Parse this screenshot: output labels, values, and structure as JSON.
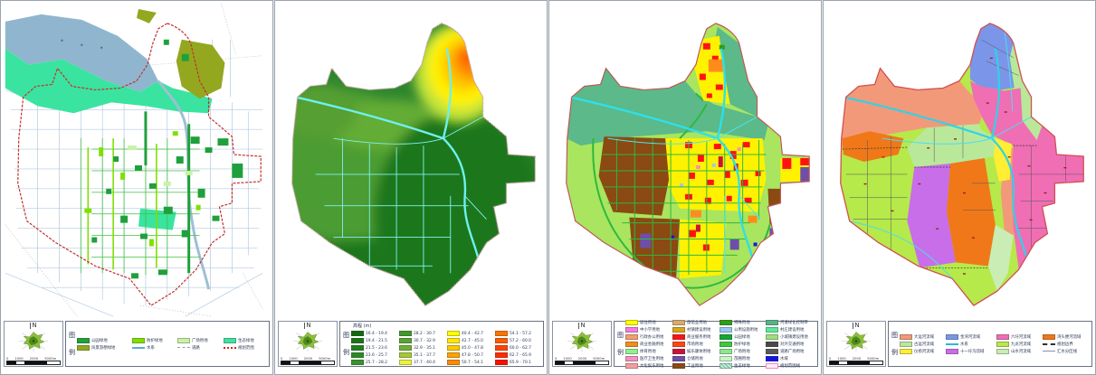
{
  "shared": {
    "north_label": "N",
    "scale_labels": [
      "0",
      "1000",
      "2000",
      "5000m"
    ],
    "legend_chars": [
      "图",
      "例"
    ]
  },
  "panels": [
    {
      "id": "green-space-plan",
      "palette": {
        "lake": "#8fb6ce",
        "eco_band": "#3be3a0",
        "river": "#9fbfd4",
        "boundary": "#c23030"
      },
      "legend": {
        "items": [
          {
            "label": "公园绿地",
            "color": "#1fa03c",
            "type": "fill"
          },
          {
            "label": "风景游憩绿地",
            "color": "#93a81f",
            "type": "fill"
          },
          {
            "label": "防护绿地",
            "color": "#7fe000",
            "type": "fill"
          },
          {
            "label": "水系",
            "color": "#5fa8d8",
            "type": "water-line"
          },
          {
            "label": "广场用地",
            "color": "#c9f2a6",
            "type": "fill"
          },
          {
            "label": "道路",
            "color": "#9a9a9a",
            "type": "road-line"
          },
          {
            "label": "生态绿地",
            "color": "#3be3a0",
            "type": "fill"
          },
          {
            "label": "规划范围",
            "color": "#d42020",
            "type": "dash-red"
          }
        ]
      }
    },
    {
      "id": "elevation-map",
      "legend_title": "高程 (m)",
      "palette": {
        "base": "#2e862e",
        "water": "#6ff0f0",
        "boundary": "#c49a9a"
      },
      "legend": {
        "items": [
          {
            "range": "16.4 - 19.4",
            "color": "#0e6b0e",
            "type": "fill"
          },
          {
            "range": "19.4 - 21.5",
            "color": "#177517",
            "type": "fill"
          },
          {
            "range": "21.5 - 23.6",
            "color": "#1f7f1f",
            "type": "fill"
          },
          {
            "range": "23.6 - 25.7",
            "color": "#2a8a24",
            "type": "fill"
          },
          {
            "range": "25.7 - 28.2",
            "color": "#37942a",
            "type": "fill"
          },
          {
            "range": "28.2 - 30.7",
            "color": "#3f9a2b",
            "type": "fill"
          },
          {
            "range": "30.7 - 32.9",
            "color": "#55a52f",
            "type": "fill"
          },
          {
            "range": "32.9 - 35.1",
            "color": "#6fb033",
            "type": "fill"
          },
          {
            "range": "35.1 - 37.7",
            "color": "#a5c838",
            "type": "fill"
          },
          {
            "range": "37.7 - 40.4",
            "color": "#eef23c",
            "type": "fill"
          },
          {
            "range": "40.4 - 42.7",
            "color": "#ffff00",
            "type": "fill"
          },
          {
            "range": "42.7 - 45.0",
            "color": "#ffe800",
            "type": "fill"
          },
          {
            "range": "45.0 - 47.8",
            "color": "#ffc800",
            "type": "fill"
          },
          {
            "range": "47.8 - 50.7",
            "color": "#ffa300",
            "type": "fill"
          },
          {
            "range": "50.7 - 54.1",
            "color": "#ff8a00",
            "type": "fill"
          },
          {
            "range": "54.1 - 57.2",
            "color": "#ff7300",
            "type": "fill"
          },
          {
            "range": "57.2 - 60.0",
            "color": "#ff5c00",
            "type": "fill"
          },
          {
            "range": "60.0 - 62.7",
            "color": "#ff4300",
            "type": "fill"
          },
          {
            "range": "62.7 - 65.9",
            "color": "#ff2a00",
            "type": "fill"
          },
          {
            "range": "65.9 - 70.1",
            "color": "#ff0f00",
            "type": "fill"
          }
        ]
      }
    },
    {
      "id": "land-use-plan",
      "palette": {
        "base": "#a9e55f",
        "river_band": "#5bb98a",
        "water": "#2fe0e8",
        "roads": "#2fb83f"
      },
      "legend": {
        "items": [
          {
            "label": "居住用地",
            "color": "#ffff00",
            "type": "fill"
          },
          {
            "label": "中小学用地",
            "color": "#f27ce0",
            "type": "fill"
          },
          {
            "label": "行政办公用地",
            "color": "#f29e6e",
            "type": "fill"
          },
          {
            "label": "商业金融用地",
            "color": "#f28c1a",
            "type": "fill"
          },
          {
            "label": "体育用地",
            "color": "#90f090",
            "type": "fill"
          },
          {
            "label": "医疗卫生用地",
            "color": "#f590c0",
            "type": "fill"
          },
          {
            "label": "文化娱乐用地",
            "color": "#f59e9e",
            "type": "fill"
          },
          {
            "label": "旅馆业用地",
            "color": "#d9a96e",
            "type": "fill"
          },
          {
            "label": "村镇建设用地",
            "color": "#d8a516",
            "type": "fill"
          },
          {
            "label": "商业服务用地",
            "color": "#ff1212",
            "type": "fill"
          },
          {
            "label": "市场用地",
            "color": "#ff4612",
            "type": "fill"
          },
          {
            "label": "娱乐康体用地",
            "color": "#cc1239",
            "type": "fill"
          },
          {
            "label": "仓储用地",
            "color": "#6e4fa8",
            "type": "fill"
          },
          {
            "label": "工业用地",
            "color": "#8a4a12",
            "type": "fill"
          },
          {
            "label": "特殊用地",
            "color": "#2f9e12",
            "type": "fill"
          },
          {
            "label": "公用设施用地",
            "color": "#9cc8f5",
            "type": "fill"
          },
          {
            "label": "公园绿地",
            "color": "#12a832",
            "type": "fill"
          },
          {
            "label": "防护绿地",
            "color": "#3cc83c",
            "type": "fill"
          },
          {
            "label": "广场用地",
            "color": "#8ce88c",
            "type": "fill"
          },
          {
            "label": "苗圃用地",
            "color": "#c8f5c8",
            "type": "fill"
          },
          {
            "label": "生态绿地",
            "color": "#7acca8",
            "type": "hatch"
          },
          {
            "label": "河道绿化控制带",
            "color": "#56b389",
            "type": "fill"
          },
          {
            "label": "村庄建设用地",
            "color": "#5ce89c",
            "type": "fill"
          },
          {
            "label": "小城镇建设用地",
            "color": "#9ce07c",
            "type": "fill"
          },
          {
            "label": "对外交通用地",
            "color": "#4a4a4a",
            "type": "fill"
          },
          {
            "label": "道路广场用地",
            "color": "#5a5a5a",
            "type": "fill"
          },
          {
            "label": "水域",
            "color": "#1414e8",
            "type": "fill"
          },
          {
            "label": "规划范围线",
            "color": "#f08ac0",
            "type": "outline-pink"
          }
        ]
      }
    },
    {
      "id": "drainage-basins",
      "palette": {
        "base": "#b6e94a",
        "water": "#2fd2e8",
        "boundary": "#d05050"
      },
      "legend": {
        "items": [
          {
            "label": "大运河流域",
            "color": "#f2997a",
            "type": "fill"
          },
          {
            "label": "古运河流域",
            "color": "#b9e89b",
            "type": "fill"
          },
          {
            "label": "仪扬河流域",
            "color": "#ffee33",
            "type": "fill"
          },
          {
            "label": "金湾河流域",
            "color": "#7b96e8",
            "type": "fill"
          },
          {
            "label": "水系",
            "color": "#28b8d8",
            "type": "water-arrow"
          },
          {
            "label": "十一圩沟流域",
            "color": "#c86ee8",
            "type": "fill"
          },
          {
            "label": "六圩河流域",
            "color": "#f06eb4",
            "type": "fill"
          },
          {
            "label": "九龙河流域",
            "color": "#b6e94a",
            "type": "fill"
          },
          {
            "label": "山水河流域",
            "color": "#c9edb4",
            "type": "fill"
          },
          {
            "label": "湾头便河流域",
            "color": "#f07818",
            "type": "fill"
          },
          {
            "label": "规划边界",
            "color": "#303030",
            "type": "dash-bold"
          },
          {
            "label": "汇水分区线",
            "color": "#8890a0",
            "type": "thin-line"
          }
        ]
      }
    }
  ]
}
